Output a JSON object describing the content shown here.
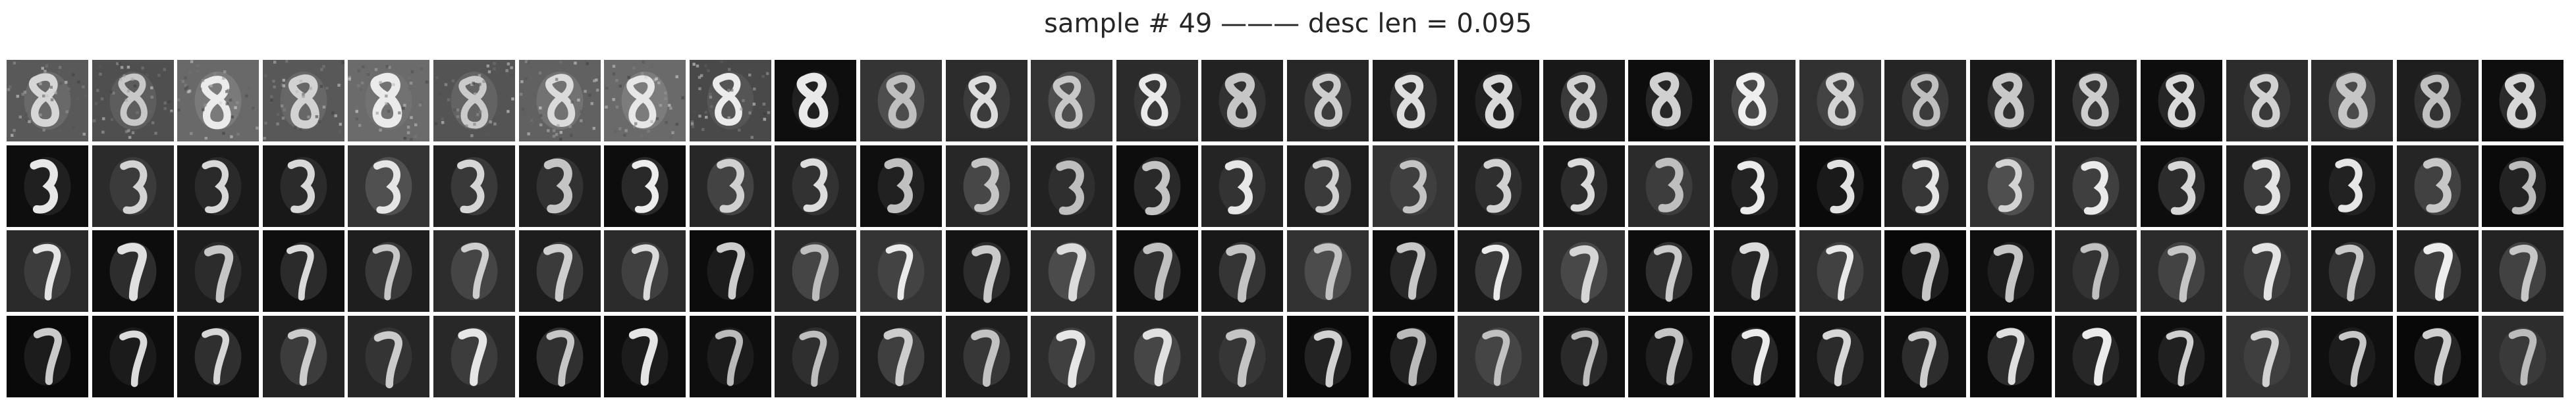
{
  "figure": {
    "title": "sample # 49 ——— desc len = 0.095",
    "grid": {
      "rows": 4,
      "columns": 30,
      "tile_content": "grayscale reconstructions of a handwritten digit morphing from 8 to 7"
    },
    "colors": {
      "background": "#ffffff",
      "tile_background_dark": "#0b0b0b",
      "stroke": "#f2f2f2"
    }
  }
}
